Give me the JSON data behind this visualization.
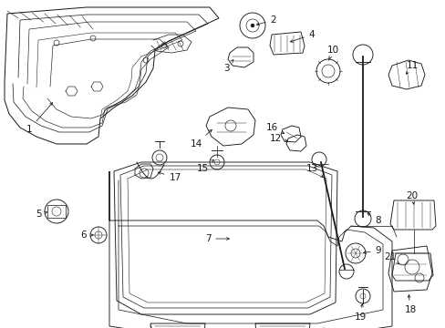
{
  "background_color": "#ffffff",
  "line_color": "#1a1a1a",
  "fig_width": 4.89,
  "fig_height": 3.6,
  "dpi": 100,
  "lw": 0.65
}
